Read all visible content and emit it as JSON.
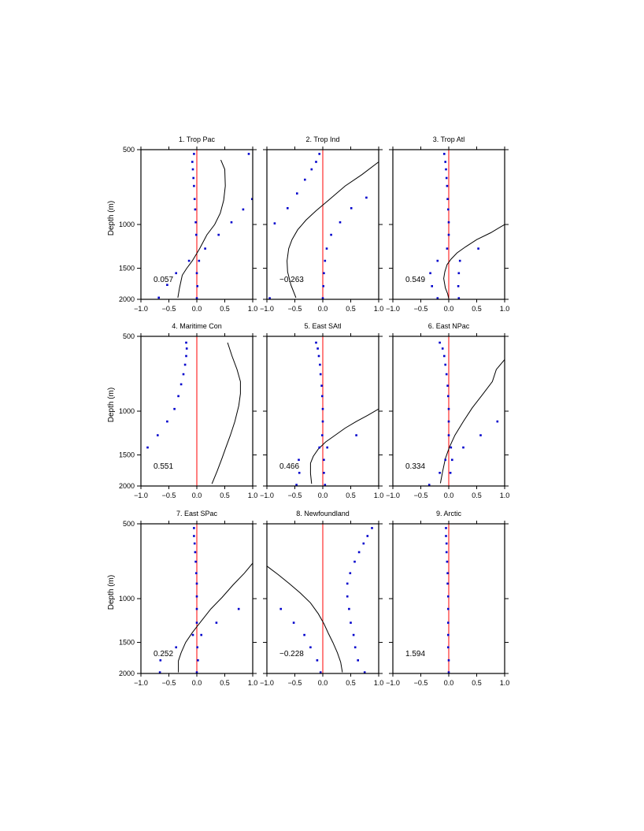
{
  "figure": {
    "y_axis_label": "Depth (m)",
    "colors": {
      "axes": "#000000",
      "zero_line": "#ff0000",
      "profile_line": "#000000",
      "dots": "#0000cc"
    }
  },
  "chart_data": [
    {
      "type": "line",
      "title": "1. Trop Pac",
      "annotation": "0.057",
      "xlim": [
        -1.0,
        1.0
      ],
      "ylim": [
        2000,
        500
      ],
      "xticks": [
        "−1.0",
        "−0.5",
        "0.0",
        "0.5",
        "1.0"
      ],
      "yticks": [
        "500",
        "1000",
        "1500",
        "2000"
      ],
      "y_log": true,
      "series": [
        {
          "kind": "line",
          "x": [
            0.43,
            0.5,
            0.51,
            0.48,
            0.42,
            0.32,
            0.18,
            0.05,
            -0.08,
            -0.18,
            -0.26,
            -0.31,
            -0.34
          ],
          "y": [
            550,
            600,
            700,
            800,
            900,
            1000,
            1100,
            1250,
            1400,
            1500,
            1600,
            1800,
            1970
          ]
        },
        {
          "kind": "dots",
          "x": [
            0.93,
            0.99,
            0.83,
            0.62,
            0.39,
            0.15,
            0.04,
            -0.14,
            -0.37,
            -0.53,
            -0.68,
            0.01,
            0.0,
            -0.05,
            -0.08,
            -0.07,
            -0.06,
            -0.05,
            -0.04,
            -0.03,
            -0.02,
            -0.01,
            0.0
          ],
          "y": [
            520,
            790,
            870,
            980,
            1100,
            1250,
            1400,
            1400,
            1570,
            1750,
            1970,
            1770,
            1980,
            520,
            560,
            600,
            650,
            700,
            790,
            870,
            980,
            1100,
            1570
          ]
        }
      ]
    },
    {
      "type": "line",
      "title": "2. Trop Ind",
      "annotation": "−0.263",
      "xlim": [
        -1.0,
        1.0
      ],
      "ylim": [
        2000,
        500
      ],
      "xticks": [
        "−1.0",
        "−0.5",
        "0.0",
        "0.5",
        "1.0"
      ],
      "yticks": [],
      "y_log": true,
      "series": [
        {
          "kind": "line",
          "x": [
            1.0,
            0.7,
            0.4,
            0.1,
            -0.12,
            -0.3,
            -0.45,
            -0.55,
            -0.61,
            -0.64,
            -0.63,
            -0.57,
            -0.48
          ],
          "y": [
            560,
            630,
            700,
            800,
            880,
            960,
            1050,
            1150,
            1250,
            1400,
            1550,
            1750,
            1970
          ]
        },
        {
          "kind": "dots",
          "x": [
            -0.06,
            -0.12,
            -0.2,
            -0.32,
            -0.46,
            -0.63,
            -0.86,
            0.78,
            0.51,
            0.31,
            0.15,
            0.07,
            0.04,
            0.02,
            0.01,
            0.0,
            -0.95
          ],
          "y": [
            520,
            560,
            600,
            660,
            750,
            860,
            990,
            780,
            860,
            980,
            1100,
            1250,
            1400,
            1570,
            1770,
            1980,
            1980
          ]
        }
      ]
    },
    {
      "type": "line",
      "title": "3. Trop Atl",
      "annotation": "0.549",
      "xlim": [
        -1.0,
        1.0
      ],
      "ylim": [
        2000,
        500
      ],
      "xticks": [
        "−1.0",
        "−0.5",
        "0.0",
        "0.5",
        "1.0"
      ],
      "yticks": [],
      "y_log": true,
      "series": [
        {
          "kind": "line",
          "x": [
            1.0,
            0.75,
            0.5,
            0.3,
            0.15,
            0.04,
            -0.03,
            -0.07,
            -0.09,
            -0.06,
            -0.02,
            0.0
          ],
          "y": [
            1000,
            1080,
            1150,
            1230,
            1300,
            1380,
            1450,
            1550,
            1650,
            1800,
            1900,
            1990
          ]
        },
        {
          "kind": "dots",
          "x": [
            -0.08,
            -0.06,
            -0.05,
            -0.04,
            -0.03,
            -0.02,
            -0.01,
            0.0,
            0.0,
            -0.03,
            0.53,
            0.2,
            -0.2,
            0.18,
            -0.33,
            0.17,
            -0.3,
            0.18,
            -0.2
          ],
          "y": [
            520,
            560,
            600,
            650,
            700,
            790,
            870,
            980,
            1100,
            1250,
            1250,
            1400,
            1400,
            1570,
            1570,
            1770,
            1770,
            1980,
            1980
          ]
        }
      ]
    },
    {
      "type": "line",
      "title": "4. Maritime Con",
      "annotation": "0.551",
      "xlim": [
        -1.0,
        1.0
      ],
      "ylim": [
        2000,
        500
      ],
      "xticks": [
        "−1.0",
        "−0.5",
        "0.0",
        "0.5",
        "1.0"
      ],
      "yticks": [
        "500",
        "1000",
        "1500",
        "2000"
      ],
      "y_log": true,
      "series": [
        {
          "kind": "line",
          "x": [
            0.55,
            0.63,
            0.72,
            0.78,
            0.78,
            0.75,
            0.68,
            0.6,
            0.52,
            0.45,
            0.36,
            0.27
          ],
          "y": [
            530,
            600,
            680,
            760,
            850,
            950,
            1100,
            1250,
            1400,
            1550,
            1750,
            1960
          ]
        },
        {
          "kind": "dots",
          "x": [
            -0.19,
            -0.18,
            -0.19,
            -0.21,
            -0.24,
            -0.28,
            -0.33,
            -0.4,
            -0.53,
            -0.7,
            -0.88
          ],
          "y": [
            530,
            560,
            600,
            650,
            710,
            780,
            870,
            980,
            1100,
            1250,
            1400
          ]
        }
      ]
    },
    {
      "type": "line",
      "title": "5. East SAtl",
      "annotation": "0.466",
      "xlim": [
        -1.0,
        1.0
      ],
      "ylim": [
        2000,
        500
      ],
      "xticks": [
        "−1.0",
        "−0.5",
        "0.0",
        "0.5",
        "1.0"
      ],
      "yticks": [],
      "y_log": true,
      "series": [
        {
          "kind": "line",
          "x": [
            1.0,
            0.8,
            0.6,
            0.4,
            0.22,
            0.05,
            -0.08,
            -0.17,
            -0.22,
            -0.22,
            -0.2
          ],
          "y": [
            980,
            1040,
            1100,
            1170,
            1250,
            1330,
            1420,
            1520,
            1620,
            1780,
            1960
          ]
        },
        {
          "kind": "dots",
          "x": [
            -0.12,
            -0.09,
            -0.07,
            -0.05,
            -0.04,
            -0.02,
            -0.01,
            0.0,
            0.0,
            -0.01,
            0.6,
            0.08,
            -0.06,
            0.02,
            -0.43,
            0.02,
            -0.42,
            0.04,
            -0.47
          ],
          "y": [
            530,
            560,
            600,
            650,
            710,
            790,
            870,
            980,
            1100,
            1250,
            1250,
            1400,
            1400,
            1570,
            1570,
            1770,
            1770,
            1980,
            1980
          ]
        }
      ]
    },
    {
      "type": "line",
      "title": "6. East NPac",
      "annotation": "0.334",
      "xlim": [
        -1.0,
        1.0
      ],
      "ylim": [
        2000,
        500
      ],
      "xticks": [
        "−1.0",
        "−0.5",
        "0.0",
        "0.5",
        "1.0"
      ],
      "yticks": [],
      "y_log": true,
      "series": [
        {
          "kind": "line",
          "x": [
            1.0,
            0.85,
            0.78,
            0.6,
            0.42,
            0.26,
            0.11,
            0.01,
            -0.06,
            -0.11,
            -0.15
          ],
          "y": [
            620,
            680,
            760,
            860,
            970,
            1100,
            1250,
            1400,
            1550,
            1750,
            1950
          ]
        },
        {
          "kind": "dots",
          "x": [
            -0.16,
            -0.11,
            -0.08,
            -0.06,
            -0.04,
            -0.02,
            -0.01,
            0.0,
            0.0,
            0.0,
            0.87,
            0.57,
            0.26,
            0.04,
            -0.06,
            0.06,
            -0.16,
            0.03,
            -0.35
          ],
          "y": [
            530,
            560,
            600,
            650,
            710,
            790,
            870,
            980,
            1100,
            1250,
            1100,
            1250,
            1400,
            1400,
            1570,
            1570,
            1770,
            1770,
            1980
          ]
        }
      ]
    },
    {
      "type": "line",
      "title": "7. East SPac",
      "annotation": "0.252",
      "xlim": [
        -1.0,
        1.0
      ],
      "ylim": [
        2000,
        500
      ],
      "xticks": [
        "−1.0",
        "−0.5",
        "0.0",
        "0.5",
        "1.0"
      ],
      "yticks": [
        "500",
        "1000",
        "1500",
        "2000"
      ],
      "y_log": true,
      "series": [
        {
          "kind": "line",
          "x": [
            1.0,
            0.85,
            0.65,
            0.45,
            0.25,
            0.08,
            -0.08,
            -0.2,
            -0.28,
            -0.33,
            -0.33
          ],
          "y": [
            720,
            790,
            880,
            990,
            1100,
            1230,
            1370,
            1500,
            1650,
            1780,
            1980
          ]
        },
        {
          "kind": "dots",
          "x": [
            -0.05,
            -0.05,
            -0.04,
            -0.03,
            -0.02,
            -0.01,
            0.0,
            0.0,
            0.0,
            0.0,
            0.75,
            0.35,
            0.08,
            -0.07,
            -0.37,
            0.01,
            -0.65,
            0.02,
            -0.66,
            0.0
          ],
          "y": [
            520,
            560,
            600,
            650,
            710,
            790,
            870,
            980,
            1100,
            1250,
            1100,
            1250,
            1400,
            1400,
            1570,
            1570,
            1770,
            1770,
            1980,
            1980
          ]
        }
      ]
    },
    {
      "type": "line",
      "title": "8. Newfoundland",
      "annotation": "−0.228",
      "xlim": [
        -1.0,
        1.0
      ],
      "ylim": [
        2000,
        500
      ],
      "xticks": [
        "−1.0",
        "−0.5",
        "0.0",
        "0.5",
        "1.0"
      ],
      "yticks": [],
      "y_log": true,
      "series": [
        {
          "kind": "line",
          "x": [
            -1.0,
            -0.8,
            -0.6,
            -0.4,
            -0.22,
            -0.08,
            0.02,
            0.1,
            0.18,
            0.26,
            0.32,
            0.35
          ],
          "y": [
            740,
            800,
            870,
            950,
            1040,
            1150,
            1260,
            1380,
            1500,
            1650,
            1800,
            1980
          ]
        },
        {
          "kind": "dots",
          "x": [
            0.88,
            0.8,
            0.73,
            0.65,
            0.57,
            0.49,
            0.44,
            0.44,
            0.47,
            0.5,
            0.55,
            0.58,
            0.63,
            0.75,
            -0.75,
            -0.52,
            -0.33,
            -0.22,
            -0.1,
            -0.04
          ],
          "y": [
            520,
            560,
            600,
            650,
            710,
            790,
            870,
            980,
            1100,
            1250,
            1400,
            1570,
            1770,
            1980,
            1100,
            1250,
            1400,
            1570,
            1770,
            1980
          ]
        }
      ]
    },
    {
      "type": "line",
      "title": "9. Arctic",
      "annotation": "1.594",
      "xlim": [
        -1.0,
        1.0
      ],
      "ylim": [
        2000,
        500
      ],
      "xticks": [
        "−1.0",
        "−0.5",
        "0.0",
        "0.5",
        "1.0"
      ],
      "yticks": [],
      "y_log": true,
      "series": [
        {
          "kind": "dots",
          "x": [
            -0.05,
            -0.05,
            -0.04,
            -0.04,
            -0.03,
            -0.02,
            -0.02,
            -0.01,
            -0.01,
            -0.01,
            -0.01,
            -0.01,
            0.0,
            0.0
          ],
          "y": [
            520,
            560,
            600,
            650,
            710,
            790,
            870,
            980,
            1100,
            1250,
            1400,
            1570,
            1770,
            1980
          ]
        }
      ]
    }
  ]
}
